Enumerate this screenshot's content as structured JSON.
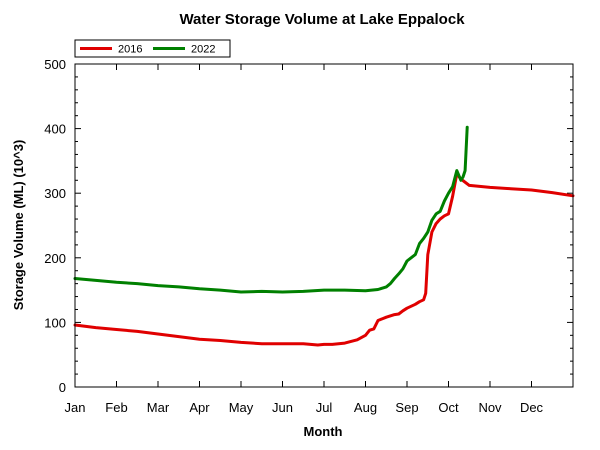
{
  "chart_data": {
    "type": "line",
    "title": "Water Storage Volume at Lake Eppalock",
    "xlabel": "Month",
    "ylabel": "Storage Volume (ML) (10^3)",
    "xlim": [
      1,
      13
    ],
    "ylim": [
      0,
      500
    ],
    "x_ticks": [
      "Jan",
      "Feb",
      "Mar",
      "Apr",
      "May",
      "Jun",
      "Jul",
      "Aug",
      "Sep",
      "Oct",
      "Nov",
      "Dec"
    ],
    "y_ticks": [
      0,
      100,
      200,
      300,
      400,
      500
    ],
    "legend_position": "top-left",
    "series": [
      {
        "name": "2016",
        "color": "#e00000",
        "x": [
          1.0,
          1.5,
          2.0,
          2.5,
          3.0,
          3.5,
          4.0,
          4.5,
          5.0,
          5.5,
          6.0,
          6.5,
          6.85,
          7.0,
          7.2,
          7.5,
          7.8,
          8.0,
          8.1,
          8.2,
          8.3,
          8.5,
          8.7,
          8.8,
          8.9,
          9.0,
          9.2,
          9.3,
          9.4,
          9.45,
          9.5,
          9.6,
          9.7,
          9.8,
          9.9,
          10.0,
          10.1,
          10.2,
          10.3,
          10.5,
          11.0,
          11.5,
          12.0,
          12.5,
          13.0
        ],
        "y": [
          96,
          92,
          89,
          86,
          82,
          78,
          74,
          72,
          69,
          67,
          67,
          67,
          65,
          66,
          66,
          68,
          73,
          80,
          88,
          90,
          103,
          108,
          112,
          113,
          118,
          122,
          128,
          132,
          135,
          145,
          205,
          240,
          253,
          260,
          265,
          268,
          295,
          330,
          322,
          312,
          309,
          307,
          305,
          301,
          296
        ]
      },
      {
        "name": "2022",
        "color": "#008000",
        "x": [
          1.0,
          1.5,
          2.0,
          2.5,
          3.0,
          3.5,
          4.0,
          4.5,
          5.0,
          5.5,
          6.0,
          6.5,
          7.0,
          7.5,
          8.0,
          8.3,
          8.5,
          8.6,
          8.7,
          8.8,
          8.9,
          9.0,
          9.1,
          9.2,
          9.3,
          9.4,
          9.5,
          9.6,
          9.7,
          9.8,
          9.9,
          10.0,
          10.1,
          10.2,
          10.3,
          10.35,
          10.4,
          10.45
        ],
        "y": [
          168,
          165,
          162,
          160,
          157,
          155,
          152,
          150,
          147,
          148,
          147,
          148,
          150,
          150,
          149,
          151,
          155,
          160,
          168,
          175,
          183,
          195,
          200,
          205,
          222,
          230,
          240,
          258,
          268,
          272,
          288,
          300,
          310,
          335,
          320,
          325,
          335,
          402
        ]
      }
    ]
  }
}
